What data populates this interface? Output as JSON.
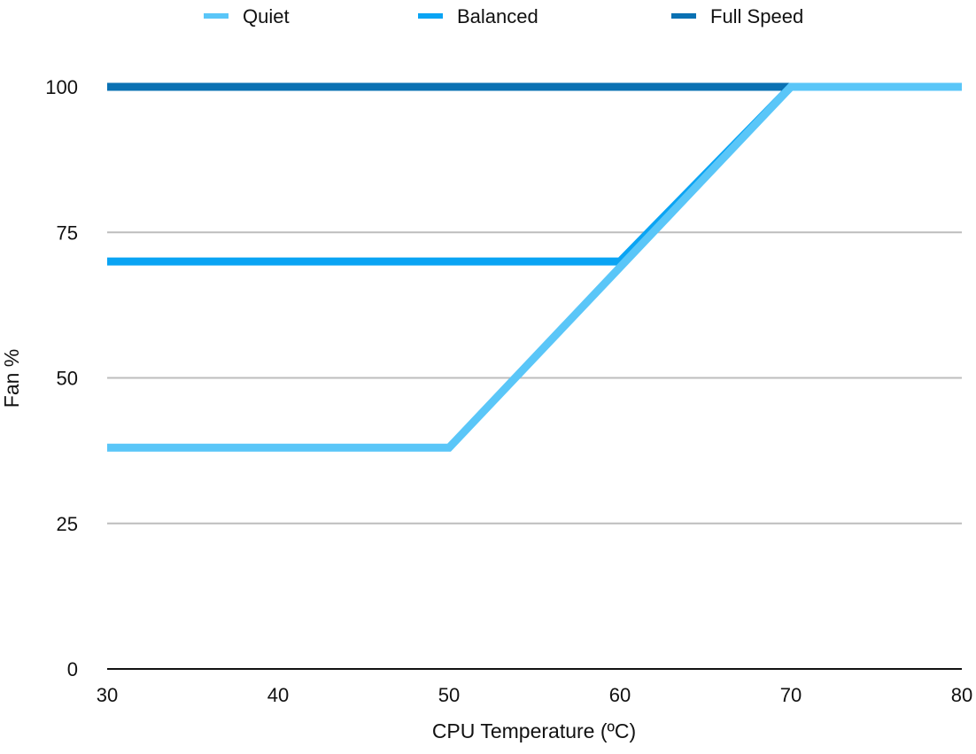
{
  "chart_data": {
    "type": "line",
    "title": "",
    "xlabel": "CPU Temperature (ºC)",
    "ylabel": "Fan %",
    "xlim": [
      30,
      80
    ],
    "ylim": [
      0,
      100
    ],
    "x_ticks": [
      "30",
      "40",
      "50",
      "60",
      "70",
      "80"
    ],
    "y_ticks": [
      "0",
      "25",
      "50",
      "75",
      "100"
    ],
    "grid": true,
    "legend_position": "top",
    "series": [
      {
        "name": "Full Speed",
        "color": "#0a71b3",
        "points": [
          [
            30,
            100
          ],
          [
            70,
            100
          ],
          [
            80,
            100
          ]
        ]
      },
      {
        "name": "Balanced",
        "color": "#0aa4f4",
        "points": [
          [
            30,
            70
          ],
          [
            60,
            70
          ],
          [
            70,
            100
          ],
          [
            80,
            100
          ]
        ]
      },
      {
        "name": "Quiet",
        "color": "#5ac6f8",
        "points": [
          [
            30,
            38
          ],
          [
            50,
            38
          ],
          [
            70,
            100
          ],
          [
            80,
            100
          ]
        ]
      }
    ]
  }
}
